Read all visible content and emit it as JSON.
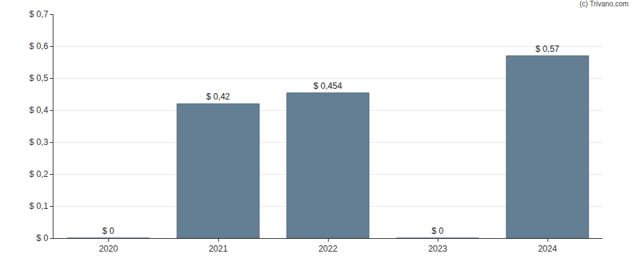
{
  "chart_data": {
    "type": "bar",
    "categories": [
      "2020",
      "2021",
      "2022",
      "2023",
      "2024"
    ],
    "values": [
      0,
      0.42,
      0.454,
      0,
      0.57
    ],
    "value_labels": [
      "$ 0",
      "$ 0,42",
      "$ 0,454",
      "$ 0",
      "$ 0,57"
    ],
    "data_labels": true,
    "color": "#647f94",
    "ylim": [
      0,
      0.7
    ],
    "yticks": [
      {
        "value": 0,
        "label": "$ 0"
      },
      {
        "value": 0.1,
        "label": "$ 0,1"
      },
      {
        "value": 0.2,
        "label": "$ 0,2"
      },
      {
        "value": 0.3,
        "label": "$ 0,3"
      },
      {
        "value": 0.4,
        "label": "$ 0,4"
      },
      {
        "value": 0.5,
        "label": "$ 0,5"
      },
      {
        "value": 0.6,
        "label": "$ 0,6"
      },
      {
        "value": 0.7,
        "label": "$ 0,7"
      }
    ],
    "grid": true,
    "annotations": [
      {
        "text": "(c) Trivano.com"
      }
    ]
  }
}
